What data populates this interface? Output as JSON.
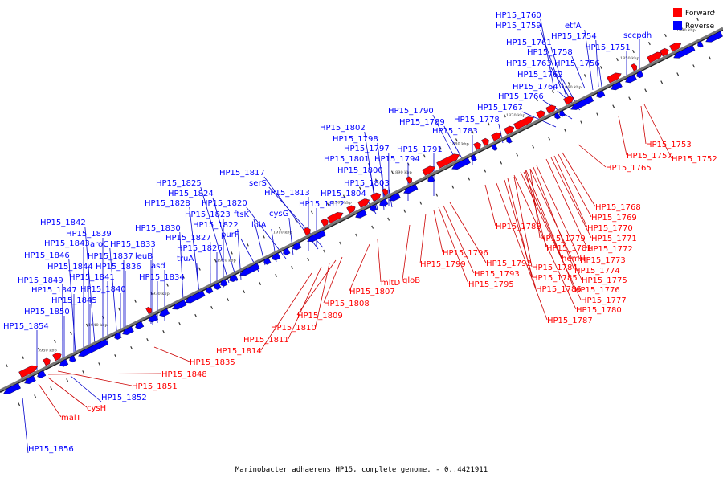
{
  "caption": "Marinobacter adhaerens HP15, complete genome. - 0..4421911",
  "legend": [
    {
      "label": "Forward",
      "color": "#ff0000"
    },
    {
      "label": "Reverse",
      "color": "#0000ff"
    }
  ],
  "colors": {
    "forward": "#ff0000",
    "reverse": "#0000ff",
    "axis": "#777777",
    "forward_line": "#cc0000",
    "reverse_line": "#0000cc"
  },
  "kbp_marks": [
    "1950 kbp",
    "1940 kbp",
    "1930 kbp",
    "1920 kbp",
    "1910 kbp",
    "1900 kbp",
    "1890 kbp",
    "1880 kbp",
    "1870 kbp",
    "1860 kbp",
    "1850 kbp",
    "1840 kbp"
  ],
  "reverse_labels": [
    "HP15_1760",
    "HP15_1759",
    "etfA",
    "HP15_1754",
    "HP15_1761",
    "HP15_1758",
    "HP15_1751",
    "sccpdh",
    "HP15_1763",
    "HP15_1756",
    "HP15_1762",
    "HP15_1764",
    "HP15_1766",
    "HP15_1767",
    "HP15_1790",
    "HP15_1789",
    "HP15_1778",
    "HP15_1783",
    "HP15_1802",
    "HP15_1798",
    "HP15_1797",
    "HP15_1791",
    "HP15_1801",
    "HP15_1794",
    "HP15_1800",
    "HP15_1803",
    "HP15_1804",
    "HP15_1817",
    "serS",
    "HP15_1825",
    "HP15_1813",
    "HP15_1824",
    "HP15_1812",
    "HP15_1828",
    "HP15_1820",
    "cysG",
    "HP15_1823",
    "ftsK",
    "lolA",
    "HP15_1822",
    "purF",
    "HP15_1842",
    "HP15_1830",
    "HP15_1827",
    "HP15_1839",
    "HP15_1826",
    "HP15_1843",
    "aroC",
    "HP15_1833",
    "HP15_1837",
    "leuB",
    "truA",
    "HP15_1846",
    "HP15_1844",
    "HP15_1836",
    "asd",
    "HP15_1841",
    "HP15_1834",
    "HP15_1849",
    "HP15_1847",
    "HP15_1840",
    "HP15_1845",
    "HP15_1850",
    "HP15_1854",
    "HP15_1852",
    "HP15_1856"
  ],
  "forward_labels": [
    "HP15_1753",
    "HP15_1757",
    "HP15_1752",
    "HP15_1765",
    "HP15_1768",
    "HP15_1769",
    "HP15_1770",
    "HP15_1771",
    "HP15_1772",
    "HP15_1788",
    "HP15_1779",
    "HP15_1781",
    "hemH",
    "HP15_1773",
    "HP15_1774",
    "HP15_1784",
    "HP15_1775",
    "HP15_1785",
    "HP15_1776",
    "HP15_1786",
    "HP15_1777",
    "HP15_1780",
    "HP15_1787",
    "HP15_1796",
    "HP15_1792",
    "HP15_1799",
    "HP15_1793",
    "HP15_1795",
    "mltD",
    "gloB",
    "HP15_1807",
    "HP15_1808",
    "HP15_1809",
    "HP15_1810",
    "HP15_1811",
    "HP15_1814",
    "HP15_1835",
    "HP15_1848",
    "HP15_1851",
    "cysH",
    "malT"
  ]
}
